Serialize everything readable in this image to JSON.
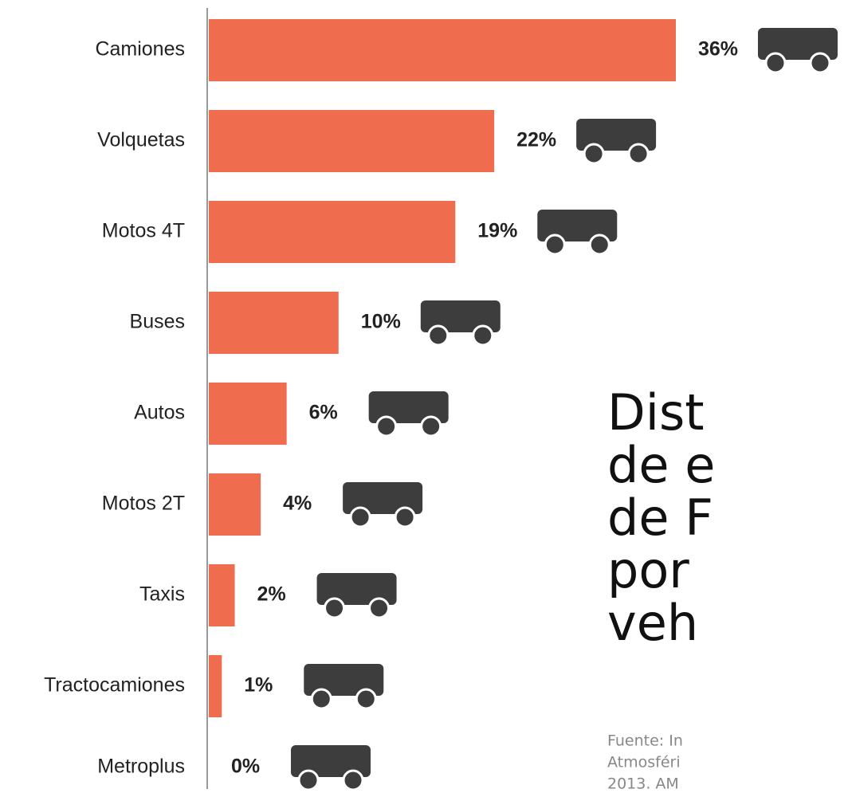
{
  "chart_data": {
    "type": "bar",
    "orientation": "horizontal",
    "categories": [
      "Camiones",
      "Volquetas",
      "Motos 4T",
      "Buses",
      "Autos",
      "Motos 2T",
      "Taxis",
      "Tractocamiones",
      "Metroplus"
    ],
    "values": [
      36,
      22,
      19,
      10,
      6,
      4,
      2,
      1,
      0
    ],
    "value_labels": [
      "36%",
      "22%",
      "19%",
      "10%",
      "6%",
      "4%",
      "2%",
      "1%",
      "0%"
    ],
    "color": "#ef6c4f",
    "xlim": [
      0,
      36
    ],
    "title_lines": [
      "Dist",
      "de e",
      "de F",
      "por",
      "veh"
    ],
    "source_lines": [
      "Fuente: In",
      "Atmosféri",
      "2013. AM"
    ]
  }
}
